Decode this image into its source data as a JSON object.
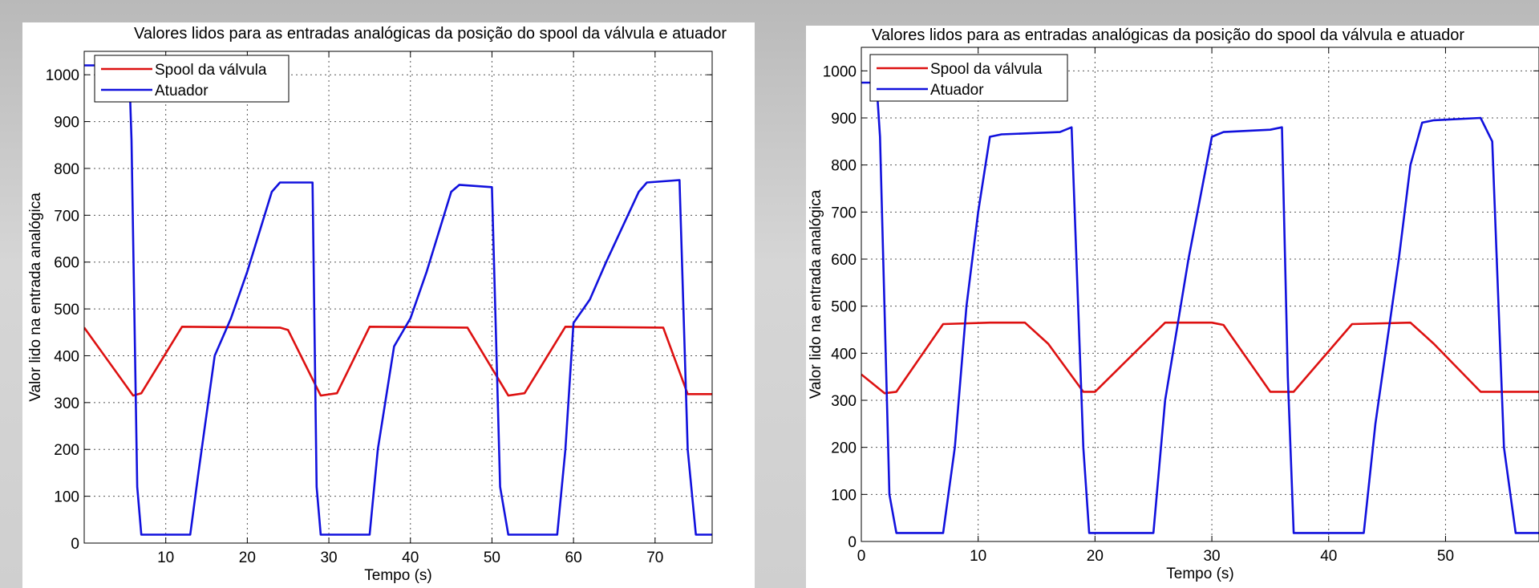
{
  "chart_data": [
    {
      "type": "line",
      "title": "Valores lidos para as entradas analógicas da posição do spool da válvula e atuador",
      "xlabel": "Tempo (s)",
      "ylabel": "Valor lido na entrada analógica",
      "xlim": [
        0,
        77
      ],
      "ylim": [
        0,
        1050
      ],
      "xticks": [
        10,
        20,
        30,
        40,
        50,
        60,
        70
      ],
      "yticks": [
        0,
        100,
        200,
        300,
        400,
        500,
        600,
        700,
        800,
        900,
        1000
      ],
      "grid": true,
      "legend_position": "top-left",
      "series": [
        {
          "name": "Spool da válvula",
          "color": "#dd1111",
          "points": [
            [
              0,
              460
            ],
            [
              6,
              315
            ],
            [
              7,
              320
            ],
            [
              12,
              462
            ],
            [
              24,
              460
            ],
            [
              25,
              455
            ],
            [
              29,
              315
            ],
            [
              31,
              320
            ],
            [
              35,
              462
            ],
            [
              47,
              460
            ],
            [
              52,
              315
            ],
            [
              54,
              320
            ],
            [
              59,
              462
            ],
            [
              71,
              460
            ],
            [
              74,
              318
            ],
            [
              77,
              318
            ]
          ]
        },
        {
          "name": "Atuador",
          "color": "#1111dd",
          "points": [
            [
              0,
              1020
            ],
            [
              5.5,
              1020
            ],
            [
              5.8,
              860
            ],
            [
              6.5,
              120
            ],
            [
              7,
              18
            ],
            [
              13,
              18
            ],
            [
              14,
              150
            ],
            [
              16,
              400
            ],
            [
              18,
              480
            ],
            [
              20,
              580
            ],
            [
              23,
              750
            ],
            [
              24,
              770
            ],
            [
              28,
              770
            ],
            [
              28.5,
              120
            ],
            [
              29,
              18
            ],
            [
              35,
              18
            ],
            [
              36,
              200
            ],
            [
              38,
              420
            ],
            [
              40,
              480
            ],
            [
              42,
              580
            ],
            [
              45,
              750
            ],
            [
              46,
              765
            ],
            [
              50,
              760
            ],
            [
              51,
              120
            ],
            [
              52,
              18
            ],
            [
              58,
              18
            ],
            [
              59,
              200
            ],
            [
              60,
              470
            ],
            [
              62,
              520
            ],
            [
              64,
              600
            ],
            [
              68,
              750
            ],
            [
              69,
              770
            ],
            [
              73,
              775
            ],
            [
              74,
              200
            ],
            [
              75,
              18
            ],
            [
              77,
              18
            ]
          ]
        }
      ]
    },
    {
      "type": "line",
      "title": "Valores lidos para as entradas analógicas da posição do spool da válvula e atuador",
      "xlabel": "Tempo (s)",
      "ylabel": "Valor lido na entrada analógica",
      "xlim": [
        0,
        58
      ],
      "ylim": [
        0,
        1050
      ],
      "xticks": [
        0,
        10,
        20,
        30,
        40,
        50
      ],
      "yticks": [
        0,
        100,
        200,
        300,
        400,
        500,
        600,
        700,
        800,
        900,
        1000
      ],
      "grid": true,
      "legend_position": "top-left",
      "series": [
        {
          "name": "Spool da válvula",
          "color": "#dd1111",
          "points": [
            [
              0,
              355
            ],
            [
              2,
              315
            ],
            [
              3,
              318
            ],
            [
              7,
              462
            ],
            [
              11,
              465
            ],
            [
              14,
              465
            ],
            [
              16,
              420
            ],
            [
              19,
              318
            ],
            [
              20,
              318
            ],
            [
              26,
              465
            ],
            [
              30,
              465
            ],
            [
              31,
              460
            ],
            [
              35,
              318
            ],
            [
              37,
              318
            ],
            [
              42,
              462
            ],
            [
              47,
              465
            ],
            [
              49,
              420
            ],
            [
              53,
              318
            ],
            [
              58,
              318
            ]
          ]
        },
        {
          "name": "Atuador",
          "color": "#1111dd",
          "points": [
            [
              0,
              975
            ],
            [
              1.3,
              975
            ],
            [
              1.6,
              860
            ],
            [
              2.4,
              100
            ],
            [
              3,
              18
            ],
            [
              7,
              18
            ],
            [
              8,
              200
            ],
            [
              9,
              500
            ],
            [
              10,
              700
            ],
            [
              11,
              860
            ],
            [
              12,
              865
            ],
            [
              17,
              870
            ],
            [
              18,
              880
            ],
            [
              19,
              200
            ],
            [
              19.5,
              18
            ],
            [
              25,
              18
            ],
            [
              26,
              300
            ],
            [
              28,
              600
            ],
            [
              30,
              860
            ],
            [
              31,
              870
            ],
            [
              35,
              875
            ],
            [
              36,
              880
            ],
            [
              36.5,
              350
            ],
            [
              37,
              18
            ],
            [
              43,
              18
            ],
            [
              44,
              250
            ],
            [
              46,
              600
            ],
            [
              47,
              800
            ],
            [
              48,
              890
            ],
            [
              49,
              895
            ],
            [
              53,
              900
            ],
            [
              54,
              850
            ],
            [
              55,
              200
            ],
            [
              56,
              18
            ],
            [
              58,
              18
            ]
          ]
        }
      ]
    }
  ]
}
